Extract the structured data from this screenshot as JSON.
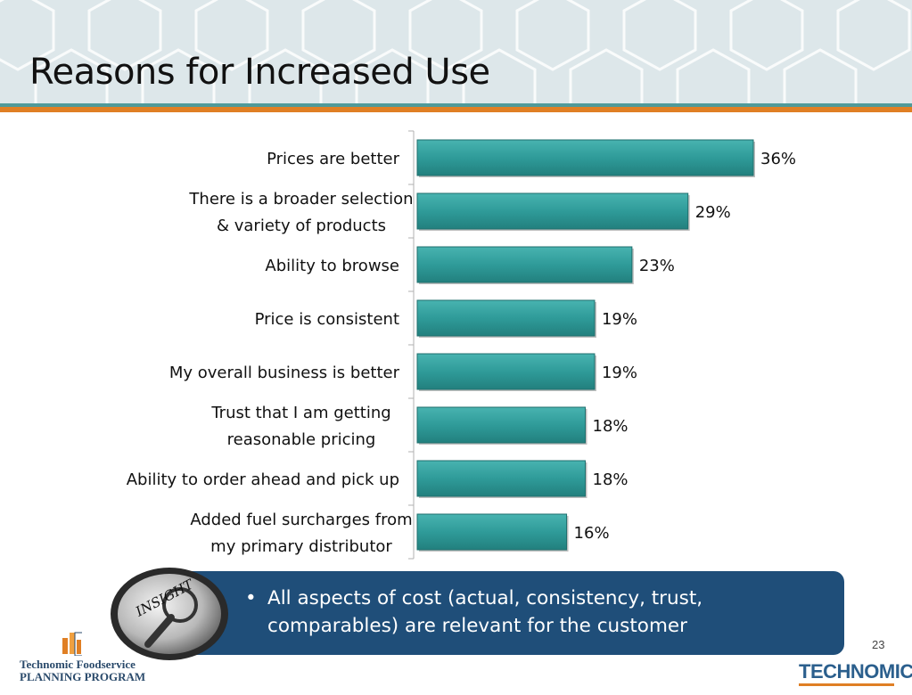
{
  "slide": {
    "title": "Reasons for Increased Use",
    "page_number": "23",
    "insight_badge_text": "INSIGHT",
    "insight_bullet": "All aspects of cost (actual, consistency, trust, comparables) are relevant for the customer",
    "footer_program_line1": "Technomic Foodservice",
    "footer_program_line2": "PLANNING PROGRAM",
    "brand": "TECHNOMIC"
  },
  "colors": {
    "bar": "#2f9b99",
    "bar_dark": "#1f6f6d",
    "header_bg": "#dde7ea",
    "accent_teal": "#4f9a9a",
    "accent_orange": "#e07f24",
    "insight_box": "#1f4e79"
  },
  "chart_data": {
    "type": "bar",
    "orientation": "horizontal",
    "categories": [
      [
        "Prices are better"
      ],
      [
        "There is a broader selection",
        "& variety of products"
      ],
      [
        "Ability to browse"
      ],
      [
        "Price is consistent"
      ],
      [
        "My overall business is better"
      ],
      [
        "Trust that I am getting",
        "reasonable pricing"
      ],
      [
        "Ability to order ahead and pick up"
      ],
      [
        "Added fuel surcharges from",
        "my primary distributor"
      ]
    ],
    "values": [
      36,
      29,
      23,
      19,
      19,
      18,
      18,
      16
    ],
    "data_labels": [
      "36%",
      "29%",
      "23%",
      "19%",
      "19%",
      "18%",
      "18%",
      "16%"
    ],
    "xlim": [
      0,
      45
    ],
    "grid": false,
    "legend": "none"
  }
}
